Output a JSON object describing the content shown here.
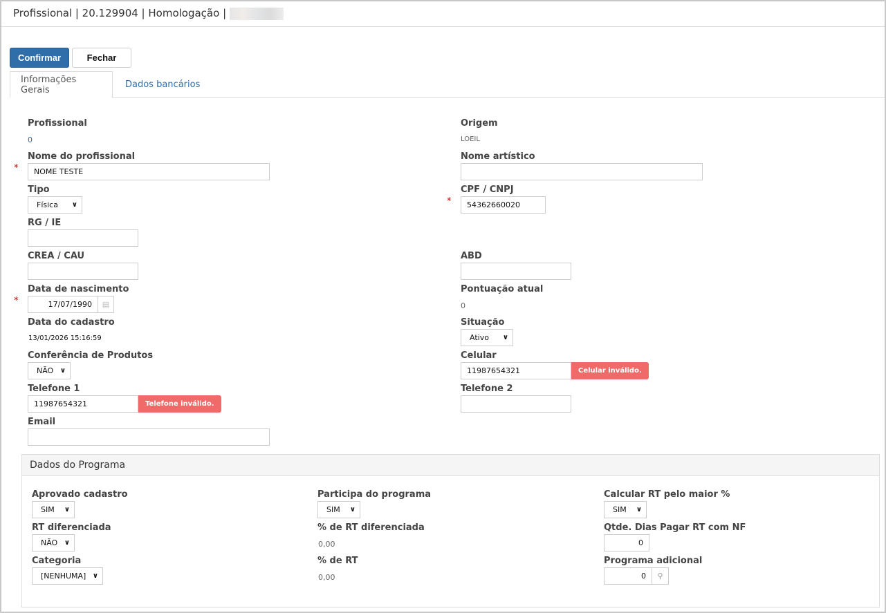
{
  "header": {
    "title": "Profissional | 20.129904 | Homologação |"
  },
  "toolbar": {
    "confirm": "Confirmar",
    "close": "Fechar"
  },
  "tabs": [
    "Informações Gerais",
    "Dados bancários"
  ],
  "form": {
    "profissional": {
      "label": "Profissional",
      "value": "0"
    },
    "origem": {
      "label": "Origem",
      "value": "LOEIL"
    },
    "nome": {
      "label": "Nome do profissional",
      "value": "NOME TESTE"
    },
    "nome_artistico": {
      "label": "Nome artístico",
      "value": ""
    },
    "tipo": {
      "label": "Tipo",
      "value": "Física"
    },
    "cpf": {
      "label": "CPF / CNPJ",
      "value": "54362660020"
    },
    "rg": {
      "label": "RG / IE",
      "value": ""
    },
    "crea": {
      "label": "CREA / CAU",
      "value": ""
    },
    "abd": {
      "label": "ABD",
      "value": ""
    },
    "nascimento": {
      "label": "Data de nascimento",
      "value": "17/07/1990"
    },
    "pontuacao": {
      "label": "Pontuação atual",
      "value": "0"
    },
    "cadastro": {
      "label": "Data do cadastro",
      "value": "13/01/2026 15:16:59"
    },
    "situacao": {
      "label": "Situação",
      "value": "Ativo"
    },
    "conferencia": {
      "label": "Conferência de Produtos",
      "value": "NÃO"
    },
    "celular": {
      "label": "Celular",
      "value": "11987654321",
      "error": "Celular inválido."
    },
    "telefone1": {
      "label": "Telefone 1",
      "value": "11987654321",
      "error": "Telefone inválido."
    },
    "telefone2": {
      "label": "Telefone 2",
      "value": ""
    },
    "email": {
      "label": "Email",
      "value": ""
    },
    "required_mark": "*"
  },
  "programa": {
    "title": "Dados do Programa",
    "aprovado": {
      "label": "Aprovado cadastro",
      "value": "SIM"
    },
    "participa": {
      "label": "Participa do programa",
      "value": "SIM"
    },
    "calcular": {
      "label": "Calcular RT pelo maior %",
      "value": "SIM"
    },
    "rt_dif": {
      "label": "RT diferenciada",
      "value": "NÃO"
    },
    "pct_rt_dif": {
      "label": "% de RT diferenciada",
      "value": "0,00"
    },
    "dias": {
      "label": "Qtde. Dias Pagar RT com NF",
      "value": "0"
    },
    "categoria": {
      "label": "Categoria",
      "value": "[NENHUMA]"
    },
    "pct_rt": {
      "label": "% de RT",
      "value": "0,00"
    },
    "adicional": {
      "label": "Programa adicional",
      "value": "0"
    }
  }
}
